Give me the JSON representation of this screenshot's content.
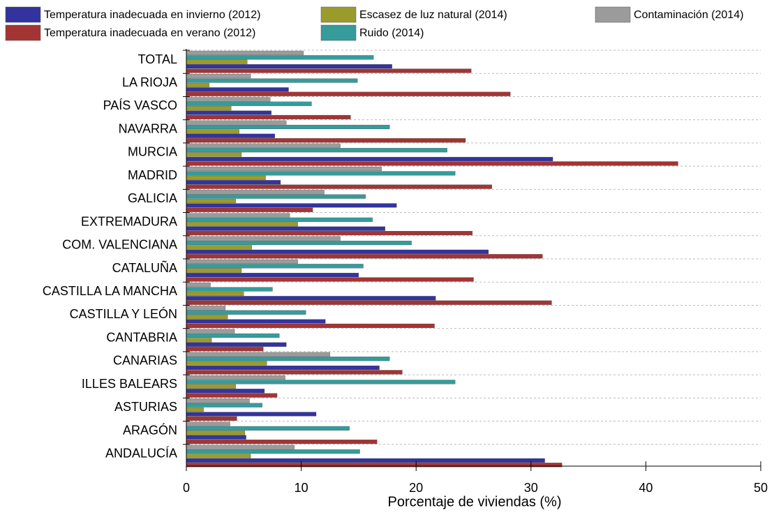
{
  "chart_data": {
    "type": "hbar",
    "xlabel": "Porcentaje de viviendas (%)",
    "categories": [
      "TOTAL",
      "LA RIOJA",
      "PAÍS VASCO",
      "NAVARRA",
      "MURCIA",
      "MADRID",
      "GALICIA",
      "EXTREMADURA",
      "COM. VALENCIANA",
      "CATALUÑA",
      "CASTILLA LA MANCHA",
      "CASTILLA Y LEÓN",
      "CANTABRIA",
      "CANARIAS",
      "ILLES BALEARS",
      "ASTURIAS",
      "ARAGÓN",
      "ANDALUCÍA"
    ],
    "series": [
      {
        "name": "Temperatura inadecuada en invierno (2012)",
        "color": "#33339f",
        "values": [
          17.9,
          8.9,
          7.4,
          7.7,
          31.9,
          8.2,
          18.3,
          17.3,
          26.3,
          15.0,
          21.7,
          12.1,
          8.7,
          16.8,
          6.8,
          11.3,
          5.2,
          31.2
        ]
      },
      {
        "name": "Temperatura inadecuada en verano (2012)",
        "color": "#a33434",
        "values": [
          24.8,
          28.2,
          14.3,
          24.3,
          42.8,
          26.6,
          11.0,
          24.9,
          31.0,
          25.0,
          31.8,
          21.6,
          6.7,
          18.8,
          7.9,
          4.4,
          16.6,
          32.7
        ]
      },
      {
        "name": "Escasez de luz natural (2014)",
        "color": "#9b9b2b",
        "values": [
          5.3,
          2.0,
          3.9,
          4.6,
          4.8,
          6.9,
          4.3,
          9.7,
          5.7,
          4.8,
          5.0,
          3.6,
          2.2,
          7.0,
          4.3,
          1.5,
          5.1,
          5.6
        ]
      },
      {
        "name": "Ruido (2014)",
        "color": "#369b9b",
        "values": [
          16.3,
          14.9,
          10.9,
          17.7,
          22.7,
          23.4,
          15.6,
          16.2,
          19.6,
          15.4,
          7.5,
          10.4,
          8.1,
          17.7,
          23.4,
          6.6,
          14.2,
          15.1
        ]
      },
      {
        "name": "Contaminación (2014)",
        "color": "#9b9b9b",
        "values": [
          10.2,
          5.6,
          7.3,
          8.7,
          13.4,
          17.0,
          12.0,
          9.0,
          13.4,
          9.7,
          2.1,
          3.4,
          4.2,
          12.5,
          8.6,
          5.5,
          3.8,
          9.4
        ]
      }
    ],
    "xlim": [
      0,
      50
    ],
    "xticks": [
      0,
      10,
      20,
      30,
      40,
      50
    ],
    "grid": true,
    "legend": "top"
  }
}
